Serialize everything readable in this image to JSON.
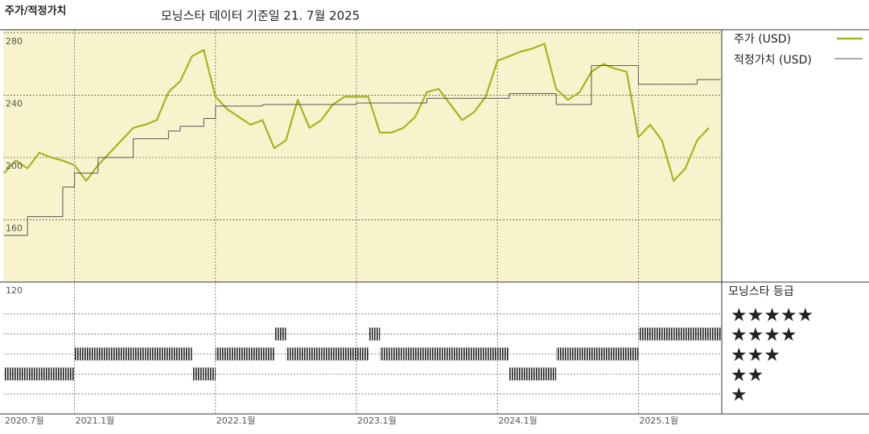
{
  "title": "주가/적정가치",
  "subtitle": "모닝스타 데이터 기준일 21. 7월 2025",
  "chart_data": [
    {
      "type": "line",
      "x": [
        "2020-07",
        "2020-08",
        "2020-09",
        "2020-10",
        "2020-11",
        "2020-12",
        "2021-01",
        "2021-02",
        "2021-03",
        "2021-04",
        "2021-05",
        "2021-06",
        "2021-07",
        "2021-08",
        "2021-09",
        "2021-10",
        "2021-11",
        "2021-12",
        "2022-01",
        "2022-02",
        "2022-03",
        "2022-04",
        "2022-05",
        "2022-06",
        "2022-07",
        "2022-08",
        "2022-09",
        "2022-10",
        "2022-11",
        "2022-12",
        "2023-01",
        "2023-02",
        "2023-03",
        "2023-04",
        "2023-05",
        "2023-06",
        "2023-07",
        "2023-08",
        "2023-09",
        "2023-10",
        "2023-11",
        "2023-12",
        "2024-01",
        "2024-02",
        "2024-03",
        "2024-04",
        "2024-05",
        "2024-06",
        "2024-07",
        "2024-08",
        "2024-09",
        "2024-10",
        "2024-11",
        "2024-12",
        "2025-01",
        "2025-02",
        "2025-03",
        "2025-04",
        "2025-05",
        "2025-06",
        "2025-07"
      ],
      "series": [
        {
          "name": "주가 (USD)",
          "color": "#a8b320",
          "values": [
            190,
            198,
            193,
            203,
            200,
            198,
            195,
            185,
            195,
            203,
            211,
            219,
            221,
            224,
            242,
            249,
            265,
            269,
            239,
            231,
            226,
            221,
            224,
            206,
            211,
            237,
            219,
            224,
            234,
            239,
            239,
            239,
            216,
            216,
            219,
            226,
            242,
            244,
            234,
            224,
            229,
            239,
            262,
            265,
            268,
            270,
            273,
            244,
            237,
            242,
            255,
            260,
            257,
            255,
            213,
            221,
            211,
            185,
            193,
            211,
            219
          ]
        },
        {
          "name": "적정가치 (USD)",
          "color": "#555555",
          "step": true,
          "values": [
            150,
            150,
            162,
            162,
            162,
            181,
            190,
            190,
            200,
            200,
            200,
            212,
            212,
            212,
            217,
            220,
            220,
            225,
            233,
            233,
            233,
            233,
            234,
            234,
            234,
            234,
            234,
            234,
            234,
            234,
            235,
            235,
            235,
            235,
            235,
            235,
            238,
            238,
            238,
            238,
            238,
            238,
            238,
            241,
            241,
            241,
            241,
            234,
            234,
            234,
            259,
            259,
            259,
            259,
            247,
            247,
            247,
            247,
            247,
            250,
            250
          ]
        }
      ],
      "ylim": [
        120,
        282
      ],
      "yticks": [
        120,
        160,
        200,
        240,
        280
      ],
      "xticks": [
        {
          "value": "2020-07",
          "label": "2020.7월"
        },
        {
          "value": "2021-01",
          "label": "2021.1월"
        },
        {
          "value": "2022-01",
          "label": "2022.1월"
        },
        {
          "value": "2023-01",
          "label": "2023.1월"
        },
        {
          "value": "2024-01",
          "label": "2024.1월"
        },
        {
          "value": "2025-01",
          "label": "2025.1월"
        }
      ],
      "background": "#f7f3cc",
      "grid": true
    },
    {
      "type": "rating",
      "title": "모닝스타 등급",
      "x": [
        "2020-07",
        "2020-08",
        "2020-09",
        "2020-10",
        "2020-11",
        "2020-12",
        "2021-01",
        "2021-02",
        "2021-03",
        "2021-04",
        "2021-05",
        "2021-06",
        "2021-07",
        "2021-08",
        "2021-09",
        "2021-10",
        "2021-11",
        "2021-12",
        "2022-01",
        "2022-02",
        "2022-03",
        "2022-04",
        "2022-05",
        "2022-06",
        "2022-07",
        "2022-08",
        "2022-09",
        "2022-10",
        "2022-11",
        "2022-12",
        "2023-01",
        "2023-02",
        "2023-03",
        "2023-04",
        "2023-05",
        "2023-06",
        "2023-07",
        "2023-08",
        "2023-09",
        "2023-10",
        "2023-11",
        "2023-12",
        "2024-01",
        "2024-02",
        "2024-03",
        "2024-04",
        "2024-05",
        "2024-06",
        "2024-07",
        "2024-08",
        "2024-09",
        "2024-10",
        "2024-11",
        "2024-12",
        "2025-01",
        "2025-02",
        "2025-03",
        "2025-04",
        "2025-05",
        "2025-06",
        "2025-07"
      ],
      "values": [
        2,
        2,
        2,
        2,
        2,
        2,
        3,
        3,
        3,
        3,
        3,
        3,
        3,
        3,
        3,
        3,
        2,
        2,
        3,
        3,
        3,
        3,
        3,
        4,
        3,
        3,
        3,
        3,
        3,
        3,
        3,
        4,
        3,
        3,
        3,
        3,
        3,
        3,
        3,
        3,
        3,
        3,
        3,
        2,
        2,
        2,
        2,
        3,
        3,
        3,
        3,
        3,
        3,
        3,
        4,
        4,
        4,
        4,
        4,
        4,
        4
      ],
      "ylim": [
        0,
        6.6
      ],
      "yticks": [
        {
          "value": 5,
          "label": "★★★★★"
        },
        {
          "value": 4,
          "label": "★★★★"
        },
        {
          "value": 3,
          "label": "★★★"
        },
        {
          "value": 2,
          "label": "★★"
        },
        {
          "value": 1,
          "label": "★"
        }
      ],
      "color": "#222222"
    }
  ]
}
